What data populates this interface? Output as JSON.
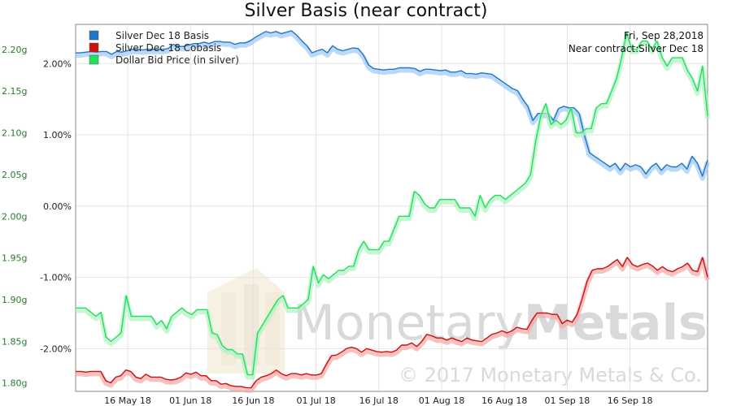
{
  "chart_data": {
    "type": "line",
    "title": "Silver Basis (near contract)",
    "annotation": {
      "date": "Fri, Sep 28,2018",
      "contract": "Near contract:Silver Dec 18"
    },
    "watermark": {
      "brand": "MonetaryMetals",
      "brand_left": "Monetary",
      "brand_right": "Metals",
      "copyright": "© 2017 Monetary Metals & Co."
    },
    "legend_position": "top-left",
    "grid": true,
    "x_ticks": [
      "16 May 18",
      "01 Jun 18",
      "16 Jun 18",
      "01 Jul 18",
      "16 Jul 18",
      "01 Aug 18",
      "16 Aug 18",
      "01 Sep 18",
      "16 Sep 18"
    ],
    "left_axis": {
      "ticks": [
        "2.20g",
        "2.15g",
        "2.10g",
        "2.05g",
        "2.00g",
        "1.95g",
        "1.90g",
        "1.85g",
        "1.80g"
      ],
      "ylim": [
        1.79,
        2.23
      ]
    },
    "right_axis": {
      "ticks": [
        "2.00%",
        "1.00%",
        "0.00%",
        "-1.00%",
        "-2.00%"
      ],
      "ylim": [
        -2.6,
        2.55
      ]
    },
    "series": [
      {
        "name": "Silver Dec 18 Basis",
        "axis": "right",
        "color": "#1f77c9",
        "glow": "#9ec9f2",
        "values": [
          2.15,
          2.15,
          2.16,
          2.17,
          2.16,
          2.17,
          2.17,
          2.13,
          2.17,
          2.16,
          2.18,
          2.2,
          2.2,
          2.19,
          2.2,
          2.2,
          2.2,
          2.2,
          2.21,
          2.27,
          2.24,
          2.24,
          2.26,
          2.28,
          2.28,
          2.3,
          2.28,
          2.31,
          2.31,
          2.3,
          2.3,
          2.27,
          2.29,
          2.29,
          2.32,
          2.37,
          2.41,
          2.45,
          2.43,
          2.45,
          2.42,
          2.44,
          2.46,
          2.4,
          2.32,
          2.25,
          2.15,
          2.18,
          2.2,
          2.15,
          2.25,
          2.2,
          2.18,
          2.2,
          2.22,
          2.21,
          2.12,
          1.98,
          1.93,
          1.92,
          1.91,
          1.92,
          1.92,
          1.94,
          1.94,
          1.94,
          1.93,
          1.89,
          1.92,
          1.92,
          1.91,
          1.9,
          1.91,
          1.88,
          1.88,
          1.9,
          1.86,
          1.86,
          1.85,
          1.87,
          1.86,
          1.85,
          1.8,
          1.75,
          1.7,
          1.65,
          1.62,
          1.5,
          1.4,
          1.2,
          1.3,
          1.3,
          1.3,
          1.2,
          1.37,
          1.4,
          1.38,
          1.38,
          1.3,
          1.0,
          0.75,
          0.7,
          0.65,
          0.6,
          0.55,
          0.6,
          0.5,
          0.6,
          0.55,
          0.58,
          0.55,
          0.45,
          0.55,
          0.6,
          0.5,
          0.58,
          0.55,
          0.55,
          0.6,
          0.52,
          0.7,
          0.6,
          0.42,
          0.65
        ]
      },
      {
        "name": "Silver Dec 18 Cobasis",
        "axis": "right",
        "color": "#cc1111",
        "glow": "#f2a6a6",
        "values": [
          -2.32,
          -2.32,
          -2.33,
          -2.32,
          -2.32,
          -2.32,
          -2.45,
          -2.48,
          -2.4,
          -2.38,
          -2.3,
          -2.32,
          -2.4,
          -2.42,
          -2.36,
          -2.4,
          -2.4,
          -2.4,
          -2.43,
          -2.44,
          -2.43,
          -2.4,
          -2.34,
          -2.36,
          -2.33,
          -2.38,
          -2.38,
          -2.45,
          -2.45,
          -2.5,
          -2.49,
          -2.52,
          -2.53,
          -2.53,
          -2.55,
          -2.55,
          -2.45,
          -2.4,
          -2.38,
          -2.35,
          -2.3,
          -2.35,
          -2.38,
          -2.35,
          -2.35,
          -2.37,
          -2.35,
          -2.37,
          -2.37,
          -2.35,
          -2.22,
          -2.1,
          -2.09,
          -2.05,
          -2.0,
          -1.98,
          -2.0,
          -2.05,
          -2.0,
          -2.02,
          -2.04,
          -2.05,
          -2.04,
          -2.05,
          -2.02,
          -1.95,
          -1.95,
          -1.92,
          -1.97,
          -1.9,
          -1.8,
          -1.82,
          -1.85,
          -1.85,
          -1.88,
          -1.85,
          -1.88,
          -1.9,
          -1.85,
          -1.88,
          -1.89,
          -1.9,
          -1.85,
          -1.8,
          -1.78,
          -1.75,
          -1.78,
          -1.75,
          -1.7,
          -1.72,
          -1.73,
          -1.6,
          -1.5,
          -1.5,
          -1.5,
          -1.52,
          -1.52,
          -1.65,
          -1.6,
          -1.63,
          -1.52,
          -1.3,
          -1.05,
          -0.9,
          -0.88,
          -0.88,
          -0.85,
          -0.8,
          -0.75,
          -0.85,
          -0.72,
          -0.82,
          -0.85,
          -0.82,
          -0.8,
          -0.84,
          -0.9,
          -0.85,
          -0.9,
          -0.92,
          -0.88,
          -0.85,
          -0.8,
          -0.9,
          -0.92,
          -0.72,
          -1.0
        ]
      },
      {
        "name": "Dollar Bid Price (in silver)",
        "axis": "left",
        "color": "#21e05a",
        "glow": "#aef2c2",
        "values": [
          1.89,
          1.89,
          1.89,
          1.885,
          1.88,
          1.885,
          1.855,
          1.85,
          1.855,
          1.86,
          1.905,
          1.88,
          1.88,
          1.88,
          1.88,
          1.88,
          1.87,
          1.875,
          1.865,
          1.88,
          1.885,
          1.89,
          1.885,
          1.882,
          1.888,
          1.888,
          1.888,
          1.86,
          1.858,
          1.845,
          1.84,
          1.84,
          1.835,
          1.835,
          1.81,
          1.81,
          1.86,
          1.87,
          1.88,
          1.89,
          1.9,
          1.905,
          1.89,
          1.89,
          1.89,
          1.895,
          1.9,
          1.94,
          1.92,
          1.93,
          1.925,
          1.93,
          1.935,
          1.935,
          1.94,
          1.94,
          1.96,
          1.97,
          1.96,
          1.96,
          1.96,
          1.97,
          1.97,
          1.985,
          2.0,
          2.0,
          2.0,
          2.03,
          2.025,
          2.015,
          2.01,
          2.01,
          2.02,
          2.02,
          2.02,
          2.02,
          2.01,
          2.01,
          2.01,
          2.0,
          2.025,
          2.01,
          2.02,
          2.025,
          2.025,
          2.02,
          2.025,
          2.03,
          2.035,
          2.04,
          2.05,
          2.09,
          2.12,
          2.135,
          2.11,
          2.115,
          2.11,
          2.115,
          2.13,
          2.1,
          2.1,
          2.105,
          2.105,
          2.13,
          2.135,
          2.135,
          2.15,
          2.165,
          2.19,
          2.22,
          2.2,
          2.2,
          2.21,
          2.21,
          2.2,
          2.21,
          2.19,
          2.18,
          2.19,
          2.19,
          2.19,
          2.175,
          2.165,
          2.15,
          2.18,
          2.12
        ]
      }
    ]
  }
}
